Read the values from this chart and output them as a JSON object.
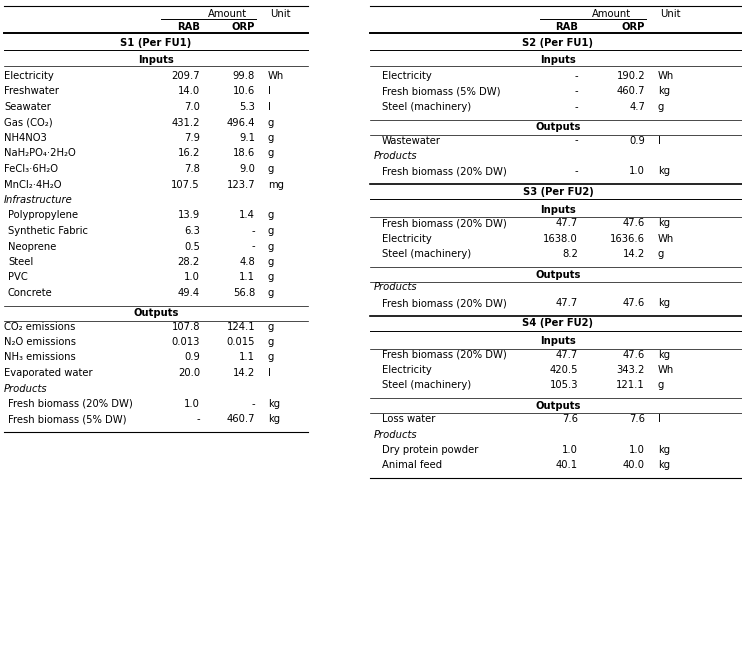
{
  "figsize": [
    7.42,
    6.53
  ],
  "dpi": 100,
  "left_table": {
    "section_s1": "S1 (Per FU1)",
    "inputs": [
      [
        "Electricity",
        "209.7",
        "99.8",
        "Wh"
      ],
      [
        "Freshwater",
        "14.0",
        "10.6",
        "l"
      ],
      [
        "Seawater",
        "7.0",
        "5.3",
        "l"
      ],
      [
        "Gas (CO₂)",
        "431.2",
        "496.4",
        "g"
      ],
      [
        "NH4NO3",
        "7.9",
        "9.1",
        "g"
      ],
      [
        "NaH₂PO₄·2H₂O",
        "16.2",
        "18.6",
        "g"
      ],
      [
        "FeCl₃·6H₂O",
        "7.8",
        "9.0",
        "g"
      ],
      [
        "MnCl₂·4H₂O",
        "107.5",
        "123.7",
        "mg"
      ]
    ],
    "section_infra": "Infrastructure",
    "infrastructure": [
      [
        "Polypropylene",
        "13.9",
        "1.4",
        "g"
      ],
      [
        "Synthetic Fabric",
        "6.3",
        "-",
        "g"
      ],
      [
        "Neoprene",
        "0.5",
        "-",
        "g"
      ],
      [
        "Steel",
        "28.2",
        "4.8",
        "g"
      ],
      [
        "PVC",
        "1.0",
        "1.1",
        "g"
      ],
      [
        "Concrete",
        "49.4",
        "56.8",
        "g"
      ]
    ],
    "outputs": [
      [
        "CO₂ emissions",
        "107.8",
        "124.1",
        "g"
      ],
      [
        "N₂O emissions",
        "0.013",
        "0.015",
        "g"
      ],
      [
        "NH₃ emissions",
        "0.9",
        "1.1",
        "g"
      ],
      [
        "Evaporated water",
        "20.0",
        "14.2",
        "l"
      ]
    ],
    "products": [
      [
        "Fresh biomass (20% DW)",
        "1.0",
        "-",
        "kg"
      ],
      [
        "Fresh biomass (5% DW)",
        "-",
        "460.7",
        "kg"
      ]
    ]
  },
  "right_table": {
    "section_s2": "S2 (Per FU1)",
    "s2_inputs": [
      [
        "Electricity",
        "-",
        "190.2",
        "Wh"
      ],
      [
        "Fresh biomass (5% DW)",
        "-",
        "460.7",
        "kg"
      ],
      [
        "Steel (machinery)",
        "-",
        "4.7",
        "g"
      ]
    ],
    "s2_wastewater": [
      "Wastewater",
      "-",
      "0.9",
      "l"
    ],
    "s2_products": [
      [
        "Fresh biomass (20% DW)",
        "-",
        "1.0",
        "kg"
      ]
    ],
    "section_s3": "S3 (Per FU2)",
    "s3_inputs": [
      [
        "Fresh biomass (20% DW)",
        "47.7",
        "47.6",
        "kg"
      ],
      [
        "Electricity",
        "1638.0",
        "1636.6",
        "Wh"
      ],
      [
        "Steel (machinery)",
        "8.2",
        "14.2",
        "g"
      ]
    ],
    "s3_products": [
      [
        "Fresh biomass (20% DW)",
        "47.7",
        "47.6",
        "kg"
      ]
    ],
    "section_s4": "S4 (Per FU2)",
    "s4_inputs": [
      [
        "Fresh biomass (20% DW)",
        "47.7",
        "47.6",
        "kg"
      ],
      [
        "Electricity",
        "420.5",
        "343.2",
        "Wh"
      ],
      [
        "Steel (machinery)",
        "105.3",
        "121.1",
        "g"
      ]
    ],
    "s4_loss_water": [
      "Loss water",
      "7.6",
      "7.6",
      "l"
    ],
    "s4_products": [
      [
        "Dry protein powder",
        "1.0",
        "1.0",
        "kg"
      ],
      [
        "Animal feed",
        "40.1",
        "40.0",
        "kg"
      ]
    ]
  }
}
